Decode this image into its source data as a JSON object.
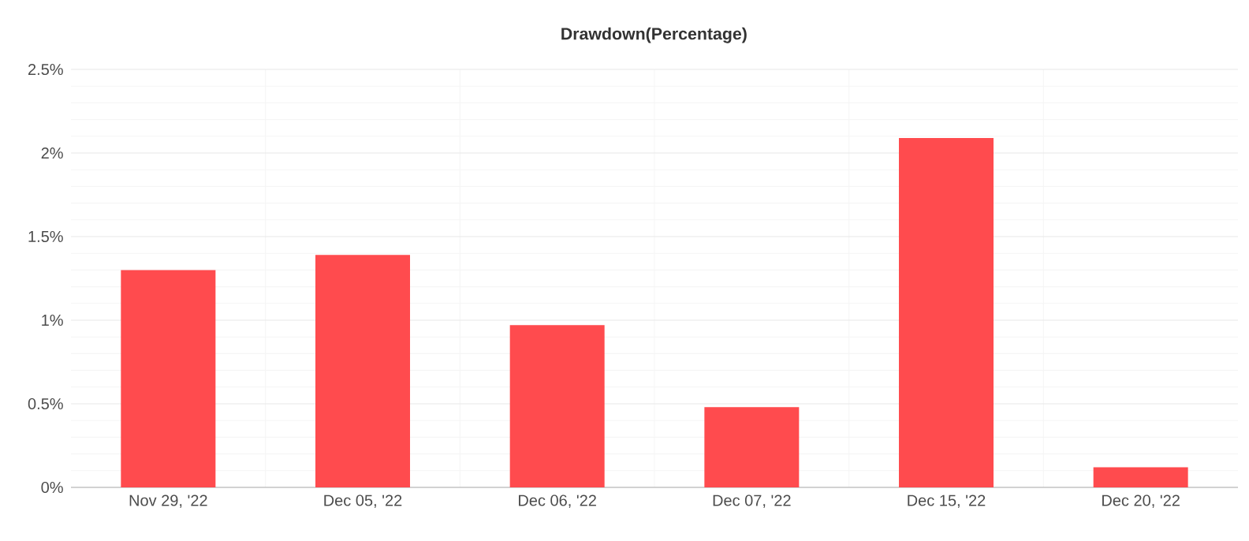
{
  "chart_data": {
    "type": "bar",
    "title": "Drawdown(Percentage)",
    "categories": [
      "Nov 29, '22",
      "Dec 05, '22",
      "Dec 06, '22",
      "Dec 07, '22",
      "Dec 15, '22",
      "Dec 20, '22"
    ],
    "values": [
      1.3,
      1.39,
      0.97,
      0.48,
      2.09,
      0.12
    ],
    "color": "#ff4b4e",
    "ylim": [
      0,
      2.5
    ],
    "yticks": [
      {
        "value": 0,
        "label": "0%"
      },
      {
        "value": 0.5,
        "label": "0.5%"
      },
      {
        "value": 1,
        "label": "1%"
      },
      {
        "value": 1.5,
        "label": "1.5%"
      },
      {
        "value": 2,
        "label": "2%"
      },
      {
        "value": 2.5,
        "label": "2.5%"
      }
    ],
    "grid": true
  }
}
